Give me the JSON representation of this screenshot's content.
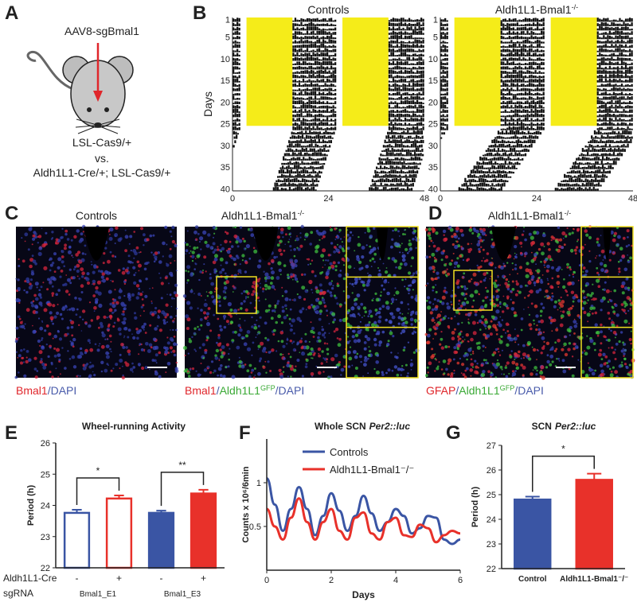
{
  "panels": {
    "A": {
      "letter": "A",
      "injection": "AAV8-sgBmal1",
      "genotype1": "LSL-Cas9/+",
      "versus": "vs.",
      "genotype2": "Aldh1L1-Cre/+; LSL-Cas9/+"
    },
    "B": {
      "letter": "B",
      "titles": [
        [
          {
            "text": "Controls"
          }
        ],
        [
          {
            "text": "Aldh1L1-Bmal1"
          },
          {
            "text": "-/-",
            "sup": true
          }
        ]
      ],
      "ylabel": "Days",
      "yticks": [
        1,
        5,
        10,
        15,
        20,
        25,
        30,
        35,
        40
      ],
      "xticks": [
        0,
        24,
        48
      ]
    },
    "C": {
      "letter": "C",
      "titles": [
        [
          {
            "text": "Controls"
          }
        ],
        [
          {
            "text": "Aldh1L1-Bmal1"
          },
          {
            "text": "-/-",
            "sup": true
          }
        ]
      ],
      "legends": [
        [
          {
            "text": "Bmal1",
            "color": "#e0262b"
          },
          {
            "text": "/",
            "color": "#4a5cab"
          },
          {
            "text": "DAPI",
            "color": "#4a5cab"
          }
        ],
        [
          {
            "text": "Bmal1",
            "color": "#e0262b"
          },
          {
            "text": "/",
            "color": "#4a5cab"
          },
          {
            "text": "Aldh1L1",
            "color": "#3aa935"
          },
          {
            "text": "GFP",
            "color": "#3aa935",
            "sup": true
          },
          {
            "text": "/DAPI",
            "color": "#4a5cab"
          }
        ]
      ]
    },
    "D": {
      "letter": "D",
      "title": [
        {
          "text": "Aldh1L1-Bmal1"
        },
        {
          "text": "-/-",
          "sup": true
        }
      ],
      "legend": [
        {
          "text": "GFAP",
          "color": "#e0262b"
        },
        {
          "text": "/",
          "color": "#4a5cab"
        },
        {
          "text": "Aldh1L1",
          "color": "#3aa935"
        },
        {
          "text": "GFP",
          "color": "#3aa935",
          "sup": true
        },
        {
          "text": "/DAPI",
          "color": "#4a5cab"
        }
      ]
    }
  },
  "chart_data": [
    {
      "type": "bar",
      "letter": "E",
      "title": "Wheel-running Activity",
      "ylabel": "Period (h)",
      "categories": [
        null,
        null,
        null,
        null
      ],
      "values": [
        23.76,
        24.22,
        23.76,
        24.38
      ],
      "errors": [
        0.1,
        0.1,
        0.07,
        0.12
      ],
      "colors": [
        "#3a55a4",
        "#e8312a",
        "#3a55a4",
        "#e8312a"
      ],
      "filled": [
        false,
        false,
        true,
        true
      ],
      "ylim": [
        22,
        26
      ],
      "yticks": [
        22,
        23,
        24,
        25,
        26
      ],
      "row_labels": [
        "Aldh1L1-Cre",
        "sgRNA"
      ],
      "cre": [
        "-",
        "+",
        "-",
        "+"
      ],
      "sgrna": [
        "Bmal1_E1",
        "Bmal1_E3"
      ],
      "significance": [
        "*",
        "**"
      ]
    },
    {
      "type": "line",
      "letter": "F",
      "title": [
        {
          "text": "Whole SCN"
        },
        {
          "text": "Per2::luc",
          "italic": true
        }
      ],
      "ylabel": "Counts x 10⁶/6min",
      "xlabel": "Days",
      "x": [
        0,
        0.25,
        0.5,
        0.75,
        1,
        1.25,
        1.5,
        1.75,
        2,
        2.25,
        2.5,
        2.75,
        3,
        3.25,
        3.5,
        3.75,
        4,
        4.25,
        4.5,
        4.75,
        5,
        5.25,
        5.5,
        5.75,
        6
      ],
      "series": [
        {
          "name": "Controls",
          "color": "#3a55a4",
          "values": [
            1.05,
            0.75,
            0.45,
            0.7,
            0.95,
            0.7,
            0.4,
            0.62,
            0.88,
            0.68,
            0.45,
            0.62,
            0.85,
            0.65,
            0.45,
            0.55,
            0.7,
            0.62,
            0.42,
            0.48,
            0.62,
            0.6,
            0.35,
            0.3,
            0.35
          ]
        },
        {
          "name": "Aldh1L1-Bmal1⁻/⁻",
          "color": "#e8312a",
          "values": [
            0.7,
            0.5,
            0.35,
            0.6,
            0.82,
            0.55,
            0.35,
            0.55,
            0.7,
            0.45,
            0.35,
            0.6,
            0.66,
            0.42,
            0.35,
            0.55,
            0.6,
            0.4,
            0.38,
            0.52,
            0.48,
            0.32,
            0.4,
            0.45,
            0.42
          ]
        }
      ],
      "xlim": [
        0,
        6
      ],
      "xticks": [
        0,
        2,
        4,
        6
      ],
      "ylim": [
        0,
        1.5
      ],
      "yticks": [
        0.5,
        1
      ]
    },
    {
      "type": "bar",
      "letter": "G",
      "title": [
        {
          "text": "SCN"
        },
        {
          "text": "Per2::luc",
          "italic": true
        }
      ],
      "ylabel": "Period (h)",
      "categories": [
        "Control",
        "Aldh1L1-Bmal1⁻/⁻"
      ],
      "values": [
        24.8,
        25.6
      ],
      "errors": [
        0.12,
        0.25
      ],
      "colors": [
        "#3a55a4",
        "#e8312a"
      ],
      "filled": [
        true,
        true
      ],
      "ylim": [
        22,
        27
      ],
      "yticks": [
        22,
        23,
        24,
        25,
        26,
        27
      ],
      "significance": [
        "*"
      ]
    }
  ]
}
